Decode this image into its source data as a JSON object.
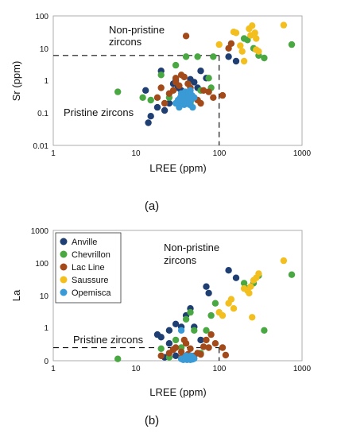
{
  "colors": {
    "Anville": "#1f3f73",
    "Chevrillon": "#4aa842",
    "Lac Line": "#a24a1a",
    "Saussure": "#f3bf1f",
    "Opemisca": "#3a9ad6"
  },
  "chart_data": [
    {
      "type": "scatter",
      "panel_label": "(a)",
      "xlabel": "LREE (ppm)",
      "ylabel": "Sr (ppm)",
      "xscale": "log",
      "yscale": "log",
      "xlim": [
        1,
        1000
      ],
      "ylim": [
        0.01,
        100
      ],
      "x_ticks": [
        "1",
        "10",
        "100",
        "1000"
      ],
      "y_ticks": [
        "0.01",
        "0.1",
        "1",
        "10",
        "100"
      ],
      "annotations": {
        "upper": [
          "Non-pristine",
          "zircons"
        ],
        "lower": [
          "Pristine zircons"
        ]
      },
      "threshold": {
        "x": 100,
        "y": 6
      },
      "series": [
        {
          "name": "Anville",
          "points": [
            [
              14,
              0.05
            ],
            [
              15,
              0.08
            ],
            [
              22,
              0.12
            ],
            [
              25,
              0.2
            ],
            [
              28,
              0.8
            ],
            [
              30,
              1.0
            ],
            [
              32,
              0.6
            ],
            [
              35,
              0.5
            ],
            [
              38,
              0.4
            ],
            [
              40,
              0.3
            ],
            [
              45,
              1.1
            ],
            [
              50,
              0.9
            ],
            [
              55,
              0.6
            ],
            [
              60,
              2.0
            ],
            [
              70,
              1.2
            ],
            [
              130,
              5.5
            ],
            [
              160,
              4.0
            ],
            [
              20,
              2.0
            ],
            [
              18,
              0.15
            ],
            [
              13,
              0.5
            ]
          ]
        },
        {
          "name": "Chevrillon",
          "points": [
            [
              6,
              0.45
            ],
            [
              12,
              0.3
            ],
            [
              15,
              0.25
            ],
            [
              25,
              0.3
            ],
            [
              30,
              3.0
            ],
            [
              40,
              5.5
            ],
            [
              55,
              5.5
            ],
            [
              60,
              0.5
            ],
            [
              75,
              1.2
            ],
            [
              80,
              0.6
            ],
            [
              85,
              5.5
            ],
            [
              200,
              20
            ],
            [
              220,
              18
            ],
            [
              260,
              10
            ],
            [
              300,
              6
            ],
            [
              350,
              5
            ],
            [
              750,
              13
            ],
            [
              20,
              1.5
            ],
            [
              45,
              0.2
            ]
          ]
        },
        {
          "name": "Lac Line",
          "points": [
            [
              18,
              0.3
            ],
            [
              20,
              0.6
            ],
            [
              22,
              0.2
            ],
            [
              25,
              0.4
            ],
            [
              28,
              0.5
            ],
            [
              30,
              0.9
            ],
            [
              33,
              0.7
            ],
            [
              35,
              1.5
            ],
            [
              38,
              1.3
            ],
            [
              40,
              24
            ],
            [
              42,
              0.8
            ],
            [
              45,
              0.6
            ],
            [
              50,
              0.3
            ],
            [
              55,
              0.25
            ],
            [
              60,
              0.2
            ],
            [
              65,
              0.5
            ],
            [
              75,
              0.45
            ],
            [
              85,
              0.3
            ],
            [
              110,
              0.35
            ],
            [
              130,
              10
            ],
            [
              140,
              14
            ],
            [
              30,
              1.2
            ]
          ]
        },
        {
          "name": "Saussure",
          "points": [
            [
              100,
              13
            ],
            [
              150,
              32
            ],
            [
              160,
              30
            ],
            [
              180,
              12
            ],
            [
              190,
              8
            ],
            [
              200,
              4
            ],
            [
              230,
              40
            ],
            [
              240,
              25
            ],
            [
              250,
              50
            ],
            [
              270,
              30
            ],
            [
              280,
              9
            ],
            [
              300,
              8
            ],
            [
              600,
              52
            ],
            [
              280,
              20
            ]
          ]
        },
        {
          "name": "Opemisca",
          "points": [
            [
              30,
              0.2
            ],
            [
              32,
              0.25
            ],
            [
              34,
              0.3
            ],
            [
              35,
              0.22
            ],
            [
              36,
              0.28
            ],
            [
              37,
              0.35
            ],
            [
              38,
              0.3
            ],
            [
              38,
              0.18
            ],
            [
              39,
              0.25
            ],
            [
              40,
              0.4
            ],
            [
              40,
              0.2
            ],
            [
              41,
              0.3
            ],
            [
              42,
              0.22
            ],
            [
              42,
              0.35
            ],
            [
              43,
              0.27
            ],
            [
              44,
              0.3
            ],
            [
              45,
              0.5
            ],
            [
              46,
              0.25
            ],
            [
              48,
              0.15
            ],
            [
              35,
              0.4
            ],
            [
              33,
              0.15
            ],
            [
              47,
              0.35
            ],
            [
              50,
              0.3
            ],
            [
              44,
              0.18
            ],
            [
              39,
              0.45
            ]
          ]
        }
      ]
    },
    {
      "type": "scatter",
      "panel_label": "(b)",
      "xlabel": "LREE (ppm)",
      "ylabel": "La",
      "xscale": "log",
      "yscale": "symlog",
      "xlim": [
        1,
        1000
      ],
      "ylim": [
        0,
        1000
      ],
      "x_ticks": [
        "1",
        "10",
        "100",
        "1000"
      ],
      "y_ticks": [
        "0",
        "1",
        "10",
        "100",
        "1000"
      ],
      "annotations": {
        "upper": [
          "Non-pristine",
          "zircons"
        ],
        "lower": [
          "Pristine zircons"
        ]
      },
      "threshold": {
        "x": 100,
        "y": 1
      },
      "legend": {
        "position": "top-left",
        "entries": [
          "Anville",
          "Chevrillon",
          "Lac Line",
          "Saussure",
          "Opemisca"
        ]
      },
      "series": [
        {
          "name": "Anville",
          "points": [
            [
              18,
              3.0
            ],
            [
              20,
              2.5
            ],
            [
              22,
              0.2
            ],
            [
              25,
              4.0
            ],
            [
              28,
              0.8
            ],
            [
              30,
              6.0
            ],
            [
              35,
              5.0
            ],
            [
              40,
              10
            ],
            [
              45,
              15
            ],
            [
              50,
              5.0
            ],
            [
              60,
              2.0
            ],
            [
              70,
              50
            ],
            [
              75,
              35
            ],
            [
              130,
              120
            ],
            [
              160,
              80
            ],
            [
              30,
              0.3
            ],
            [
              25,
              1.5
            ]
          ]
        },
        {
          "name": "Chevrillon",
          "points": [
            [
              6,
              0.1
            ],
            [
              20,
              0.9
            ],
            [
              25,
              0.2
            ],
            [
              30,
              2.0
            ],
            [
              40,
              8.0
            ],
            [
              45,
              12
            ],
            [
              50,
              4.0
            ],
            [
              60,
              0.5
            ],
            [
              70,
              4.0
            ],
            [
              80,
              10
            ],
            [
              90,
              20
            ],
            [
              200,
              60
            ],
            [
              220,
              45
            ],
            [
              260,
              60
            ],
            [
              300,
              90
            ],
            [
              350,
              4.0
            ],
            [
              750,
              95
            ],
            [
              35,
              1.0
            ]
          ]
        },
        {
          "name": "Lac Line",
          "points": [
            [
              20,
              0.3
            ],
            [
              25,
              0.5
            ],
            [
              28,
              0.8
            ],
            [
              30,
              1.0
            ],
            [
              35,
              0.6
            ],
            [
              38,
              2.0
            ],
            [
              40,
              1.5
            ],
            [
              42,
              0.4
            ],
            [
              45,
              0.9
            ],
            [
              50,
              0.3
            ],
            [
              55,
              0.5
            ],
            [
              60,
              0.4
            ],
            [
              65,
              1.1
            ],
            [
              70,
              2.0
            ],
            [
              75,
              1.0
            ],
            [
              80,
              3.0
            ],
            [
              90,
              1.5
            ],
            [
              110,
              1.0
            ],
            [
              120,
              0.35
            ],
            [
              35,
              0.2
            ]
          ]
        },
        {
          "name": "Saussure",
          "points": [
            [
              100,
              12
            ],
            [
              110,
              10
            ],
            [
              130,
              20
            ],
            [
              140,
              25
            ],
            [
              150,
              15
            ],
            [
              200,
              45
            ],
            [
              220,
              40
            ],
            [
              240,
              50
            ],
            [
              260,
              70
            ],
            [
              280,
              80
            ],
            [
              300,
              100
            ],
            [
              600,
              200
            ],
            [
              250,
              9.0
            ],
            [
              230,
              35
            ]
          ]
        },
        {
          "name": "Opemisca",
          "points": [
            [
              35,
              0.1
            ],
            [
              38,
              0.15
            ],
            [
              40,
              0.2
            ],
            [
              41,
              0.05
            ],
            [
              42,
              0.12
            ],
            [
              43,
              0.18
            ],
            [
              44,
              0.08
            ],
            [
              45,
              0.25
            ],
            [
              46,
              0.1
            ],
            [
              47,
              0.15
            ],
            [
              48,
              0.2
            ],
            [
              50,
              0.12
            ],
            [
              40,
              0.3
            ],
            [
              37,
              0.05
            ],
            [
              45,
              0.05
            ],
            [
              48,
              0.08
            ],
            [
              42,
              0.25
            ],
            [
              39,
              0.1
            ],
            [
              44,
              0.22
            ],
            [
              46,
              0.3
            ],
            [
              35,
              4.0
            ]
          ]
        }
      ]
    }
  ]
}
